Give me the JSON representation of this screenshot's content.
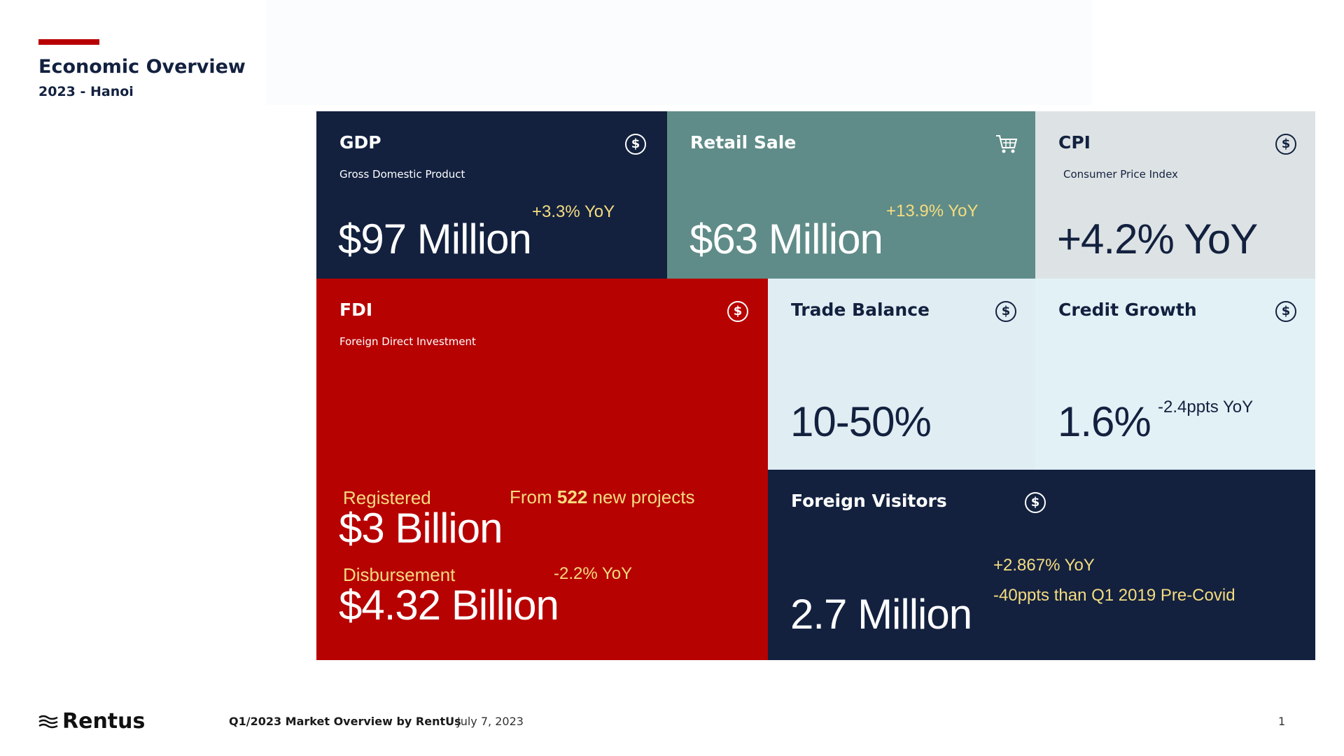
{
  "header": {
    "title": "Economic Overview",
    "subtitle": "2023 - Hanoi",
    "accent_color": "#b80000"
  },
  "tiles": {
    "gdp": {
      "title": "GDP",
      "description": "Gross Domestic Product",
      "value": "$97 Million",
      "change": "+3.3% YoY",
      "icon": "dollar-circle-icon",
      "color": "#13213f"
    },
    "retail": {
      "title": "Retail Sale",
      "value": "$63 Million",
      "change": "+13.9% YoY",
      "icon": "shopping-cart-icon",
      "color": "#5f8c88"
    },
    "cpi": {
      "title": "CPI",
      "description": "Consumer Price Index",
      "value": "+4.2% YoY",
      "icon": "dollar-circle-icon",
      "color": "#dde3e4"
    },
    "fdi": {
      "title": "FDI",
      "description": "Foreign Direct Investment",
      "registered_label": "Registered",
      "registered_value": "$3 Billion",
      "projects_prefix": "From",
      "projects_count": "522",
      "projects_suffix": "new projects",
      "disbursement_label": "Disbursement",
      "disbursement_value": "$4.32 Billion",
      "disbursement_change": "-2.2% YoY",
      "icon": "dollar-circle-icon",
      "color": "#b70202"
    },
    "trade": {
      "title": "Trade Balance",
      "value": "10-50%",
      "icon": "dollar-circle-icon",
      "color": "#e0edf3"
    },
    "credit": {
      "title": "Credit Growth",
      "value": "1.6%",
      "change": "-2.4ppts YoY",
      "icon": "dollar-circle-icon",
      "color": "#e2f1f6"
    },
    "visitors": {
      "title": "Foreign Visitors",
      "value": "2.7 Million",
      "change": "+2.867% YoY",
      "note": "-40ppts than Q1 2019 Pre-Covid",
      "icon": "dollar-circle-icon",
      "color": "#13213f"
    }
  },
  "icon_glyph": "$",
  "footer": {
    "brand": "Rentus",
    "caption": "Q1/2023 Market Overview by RentUs",
    "date": "July 7, 2023",
    "page_number": "1"
  }
}
